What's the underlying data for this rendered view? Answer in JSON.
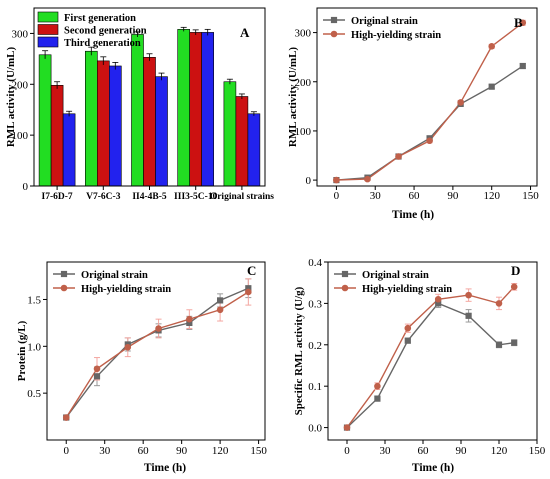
{
  "colors": {
    "first_gen": "#22dd22",
    "second_gen": "#cc1111",
    "third_gen": "#2222ee",
    "original": "#666666",
    "high": "#c0604a",
    "high_err": "#f4a6a0",
    "orig_err": "#9a9a9a"
  },
  "chart_data": [
    {
      "id": "A",
      "type": "bar",
      "panel_label": "A",
      "title": "",
      "xlabel": "",
      "ylabel": "RML activity (U/mL)",
      "ylim": [
        0,
        350
      ],
      "yticks": [
        0,
        100,
        200,
        300
      ],
      "categories": [
        "I7-6D-7",
        "V7-6C-3",
        "II4-4B-5",
        "III3-5C-10",
        "Original strains"
      ],
      "series": [
        {
          "name": "First generation",
          "color_key": "first_gen",
          "values": [
            258,
            265,
            298,
            308,
            205
          ],
          "errors": [
            8,
            8,
            5,
            4,
            5
          ]
        },
        {
          "name": "Second generation",
          "color_key": "second_gen",
          "values": [
            198,
            246,
            253,
            302,
            176
          ],
          "errors": [
            7,
            8,
            7,
            5,
            5
          ]
        },
        {
          "name": "Third generation",
          "color_key": "third_gen",
          "values": [
            142,
            236,
            215,
            302,
            142
          ],
          "errors": [
            5,
            7,
            7,
            6,
            4
          ]
        }
      ],
      "legend": "top-left",
      "grid": false
    },
    {
      "id": "B",
      "type": "line",
      "panel_label": "B",
      "xlabel": "Time (h)",
      "ylabel": "RML activity (U/mL)",
      "xlim": [
        -15,
        155
      ],
      "ylim": [
        -12,
        350
      ],
      "xticks": [
        0,
        30,
        60,
        90,
        120,
        150
      ],
      "yticks": [
        0,
        100,
        200,
        300
      ],
      "x": [
        0,
        24,
        48,
        72,
        96,
        120,
        144
      ],
      "series": [
        {
          "name": "Original strain",
          "color_key": "original",
          "marker": "square",
          "values": [
            0,
            5,
            48,
            85,
            155,
            190,
            232
          ],
          "errors": [
            2,
            3,
            3,
            4,
            4,
            4,
            5
          ]
        },
        {
          "name": "High-yielding strain",
          "color_key": "high",
          "marker": "circle",
          "values": [
            0,
            2,
            48,
            80,
            158,
            272,
            320
          ],
          "errors": [
            2,
            3,
            3,
            4,
            4,
            4,
            5
          ]
        }
      ],
      "legend": "top-left",
      "grid": false
    },
    {
      "id": "C",
      "type": "line",
      "panel_label": "C",
      "xlabel": "Time (h)",
      "ylabel": "Protein (g/L)",
      "xlim": [
        -15,
        155
      ],
      "ylim": [
        0,
        1.9
      ],
      "xticks": [
        0,
        30,
        60,
        90,
        120,
        150
      ],
      "yticks": [
        0.5,
        1.0,
        1.5
      ],
      "x": [
        0,
        24,
        48,
        72,
        96,
        120,
        142
      ],
      "series": [
        {
          "name": "Original strain",
          "color_key": "original",
          "marker": "square",
          "values": [
            0.24,
            0.68,
            1.02,
            1.17,
            1.25,
            1.49,
            1.62
          ],
          "errors": [
            0.02,
            0.1,
            0.07,
            0.07,
            0.07,
            0.07,
            0.1
          ]
        },
        {
          "name": "High-yielding strain",
          "color_key": "high",
          "marker": "circle",
          "values": [
            0.24,
            0.76,
            0.99,
            1.19,
            1.29,
            1.39,
            1.58
          ],
          "errors": [
            0.02,
            0.12,
            0.1,
            0.1,
            0.1,
            0.12,
            0.14
          ]
        }
      ],
      "legend": "top-left",
      "grid": false
    },
    {
      "id": "D",
      "type": "line",
      "panel_label": "D",
      "xlabel": "Time (h)",
      "ylabel": "Specific RML activity (U/g)",
      "xlim": [
        -15,
        150
      ],
      "ylim": [
        -0.03,
        0.4
      ],
      "xticks": [
        0,
        30,
        60,
        90,
        120,
        150
      ],
      "yticks": [
        0.0,
        0.1,
        0.2,
        0.3,
        0.4
      ],
      "x": [
        0,
        24,
        48,
        72,
        96,
        120,
        132
      ],
      "series": [
        {
          "name": "Original strain",
          "color_key": "original",
          "marker": "square",
          "values": [
            0.0,
            0.07,
            0.21,
            0.3,
            0.27,
            0.2,
            0.205
          ],
          "errors": [
            0.003,
            0.006,
            0.006,
            0.01,
            0.015,
            0.007,
            0.007
          ]
        },
        {
          "name": "High-yielding strain",
          "color_key": "high",
          "marker": "circle",
          "values": [
            0.0,
            0.1,
            0.24,
            0.31,
            0.32,
            0.3,
            0.34
          ],
          "errors": [
            0.003,
            0.008,
            0.01,
            0.012,
            0.015,
            0.015,
            0.008
          ]
        }
      ],
      "legend": "top-left",
      "grid": false
    }
  ]
}
